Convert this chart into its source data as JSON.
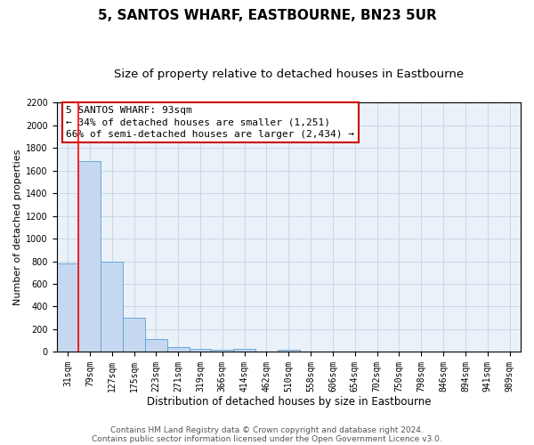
{
  "title": "5, SANTOS WHARF, EASTBOURNE, BN23 5UR",
  "subtitle": "Size of property relative to detached houses in Eastbourne",
  "xlabel": "Distribution of detached houses by size in Eastbourne",
  "ylabel": "Number of detached properties",
  "categories": [
    "31sqm",
    "79sqm",
    "127sqm",
    "175sqm",
    "223sqm",
    "271sqm",
    "319sqm",
    "366sqm",
    "414sqm",
    "462sqm",
    "510sqm",
    "558sqm",
    "606sqm",
    "654sqm",
    "702sqm",
    "750sqm",
    "798sqm",
    "846sqm",
    "894sqm",
    "941sqm",
    "989sqm"
  ],
  "values": [
    780,
    1680,
    795,
    300,
    115,
    40,
    25,
    20,
    30,
    0,
    20,
    0,
    0,
    0,
    0,
    0,
    0,
    0,
    0,
    0,
    0
  ],
  "bar_color": "#c5d8f0",
  "bar_edge_color": "#5a9fd4",
  "red_line_x": 0.5,
  "annotation_line1": "5 SANTOS WHARF: 93sqm",
  "annotation_line2": "← 34% of detached houses are smaller (1,251)",
  "annotation_line3": "66% of semi-detached houses are larger (2,434) →",
  "annotation_box_color": "#ffffff",
  "annotation_box_edge": "#cc0000",
  "ylim": [
    0,
    2200
  ],
  "yticks": [
    0,
    200,
    400,
    600,
    800,
    1000,
    1200,
    1400,
    1600,
    1800,
    2000,
    2200
  ],
  "footer_line1": "Contains HM Land Registry data © Crown copyright and database right 2024.",
  "footer_line2": "Contains public sector information licensed under the Open Government Licence v3.0.",
  "grid_color": "#c8d8e8",
  "background_color": "#eaf1f8",
  "title_fontsize": 11,
  "subtitle_fontsize": 9.5,
  "xlabel_fontsize": 8.5,
  "ylabel_fontsize": 8,
  "tick_fontsize": 7,
  "annotation_fontsize": 8,
  "footer_fontsize": 6.5
}
